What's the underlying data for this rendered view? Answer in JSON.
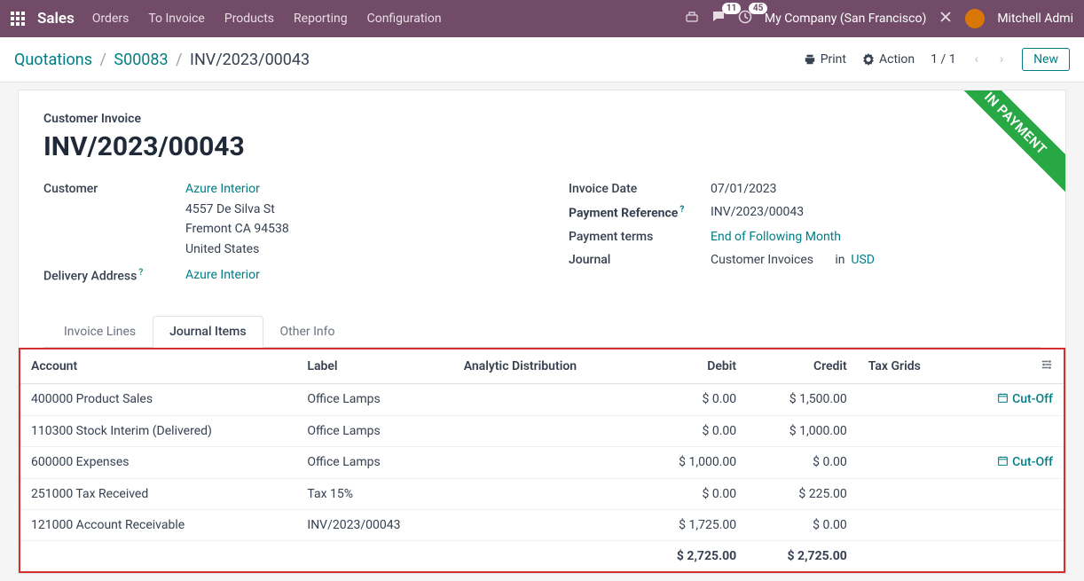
{
  "topnav": {
    "brand": "Sales",
    "menu": [
      "Orders",
      "To Invoice",
      "Products",
      "Reporting",
      "Configuration"
    ],
    "chat_badge": "11",
    "activity_badge": "45",
    "company": "My Company (San Francisco)",
    "user": "Mitchell Admi"
  },
  "subbar": {
    "bc1": "Quotations",
    "bc2": "S00083",
    "bc3": "INV/2023/00043",
    "print": "Print",
    "action": "Action",
    "pager": "1 / 1",
    "new": "New"
  },
  "ribbon": "IN PAYMENT",
  "header": {
    "subtitle": "Customer Invoice",
    "title": "INV/2023/00043"
  },
  "left": {
    "customer_label": "Customer",
    "customer": "Azure Interior",
    "addr1": "4557 De Silva St",
    "addr2": "Fremont CA 94538",
    "addr3": "United States",
    "delivery_label": "Delivery Address",
    "delivery": "Azure Interior"
  },
  "right": {
    "invdate_label": "Invoice Date",
    "invdate": "07/01/2023",
    "payref_label": "Payment Reference",
    "payref": "INV/2023/00043",
    "terms_label": "Payment terms",
    "terms": "End of Following Month",
    "journal_label": "Journal",
    "journal": "Customer Invoices",
    "in": "in",
    "currency": "USD"
  },
  "tabs": [
    "Invoice Lines",
    "Journal Items",
    "Other Info"
  ],
  "table": {
    "headers": {
      "account": "Account",
      "label": "Label",
      "analytic": "Analytic Distribution",
      "debit": "Debit",
      "credit": "Credit",
      "tax": "Tax Grids"
    },
    "cutoff_label": "Cut-Off",
    "rows": [
      {
        "account": "400000 Product Sales",
        "label": "Office Lamps",
        "debit": "$ 0.00",
        "credit": "$ 1,500.00",
        "cutoff": true
      },
      {
        "account": "110300 Stock Interim (Delivered)",
        "label": "Office Lamps",
        "debit": "$ 0.00",
        "credit": "$ 1,000.00",
        "cutoff": false
      },
      {
        "account": "600000 Expenses",
        "label": "Office Lamps",
        "debit": "$ 1,000.00",
        "credit": "$ 0.00",
        "cutoff": true
      },
      {
        "account": "251000 Tax Received",
        "label": "Tax 15%",
        "debit": "$ 0.00",
        "credit": "$ 225.00",
        "cutoff": false
      },
      {
        "account": "121000 Account Receivable",
        "label": "INV/2023/00043",
        "debit": "$ 1,725.00",
        "credit": "$ 0.00",
        "cutoff": false
      }
    ],
    "totals": {
      "debit": "$ 2,725.00",
      "credit": "$ 2,725.00"
    }
  }
}
